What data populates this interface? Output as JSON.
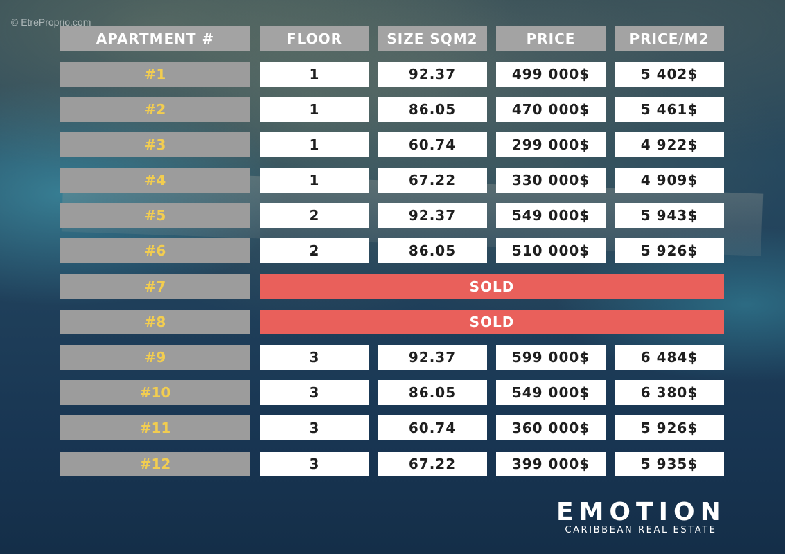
{
  "watermark": "© EtreProprio.com",
  "headers": {
    "apartment": "APARTMENT #",
    "floor": "FLOOR",
    "size": "SIZE SQM2",
    "price": "PRICE",
    "price_per_m2": "PRICE/M2"
  },
  "rows": [
    {
      "apartment": "#1",
      "floor": "1",
      "size": "92.37",
      "price": "499 000$",
      "price_per_m2": "5 402$"
    },
    {
      "apartment": "#2",
      "floor": "1",
      "size": "86.05",
      "price": "470 000$",
      "price_per_m2": "5 461$"
    },
    {
      "apartment": "#3",
      "floor": "1",
      "size": "60.74",
      "price": "299 000$",
      "price_per_m2": "4 922$"
    },
    {
      "apartment": "#4",
      "floor": "1",
      "size": "67.22",
      "price": "330 000$",
      "price_per_m2": "4 909$"
    },
    {
      "apartment": "#5",
      "floor": "2",
      "size": "92.37",
      "price": "549 000$",
      "price_per_m2": "5 943$"
    },
    {
      "apartment": "#6",
      "floor": "2",
      "size": "86.05",
      "price": "510 000$",
      "price_per_m2": "5 926$"
    },
    {
      "apartment": "#7",
      "status": "SOLD"
    },
    {
      "apartment": "#8",
      "status": "SOLD"
    },
    {
      "apartment": "#9",
      "floor": "3",
      "size": "92.37",
      "price": "599 000$",
      "price_per_m2": "6 484$"
    },
    {
      "apartment": "#10",
      "floor": "3",
      "size": "86.05",
      "price": "549 000$",
      "price_per_m2": "6 380$"
    },
    {
      "apartment": "#11",
      "floor": "3",
      "size": "60.74",
      "price": "360 000$",
      "price_per_m2": "5 926$"
    },
    {
      "apartment": "#12",
      "floor": "3",
      "size": "67.22",
      "price": "399 000$",
      "price_per_m2": "5 935$"
    }
  ],
  "brand": {
    "name": "EMOTION",
    "tagline": "CARIBBEAN REAL ESTATE"
  },
  "colors": {
    "header_bg": "#a3a3a3",
    "apartment_bg": "#9c9c9c",
    "apartment_text": "#f2cd50",
    "value_bg": "#ffffff",
    "sold_bg": "#e9605b"
  }
}
